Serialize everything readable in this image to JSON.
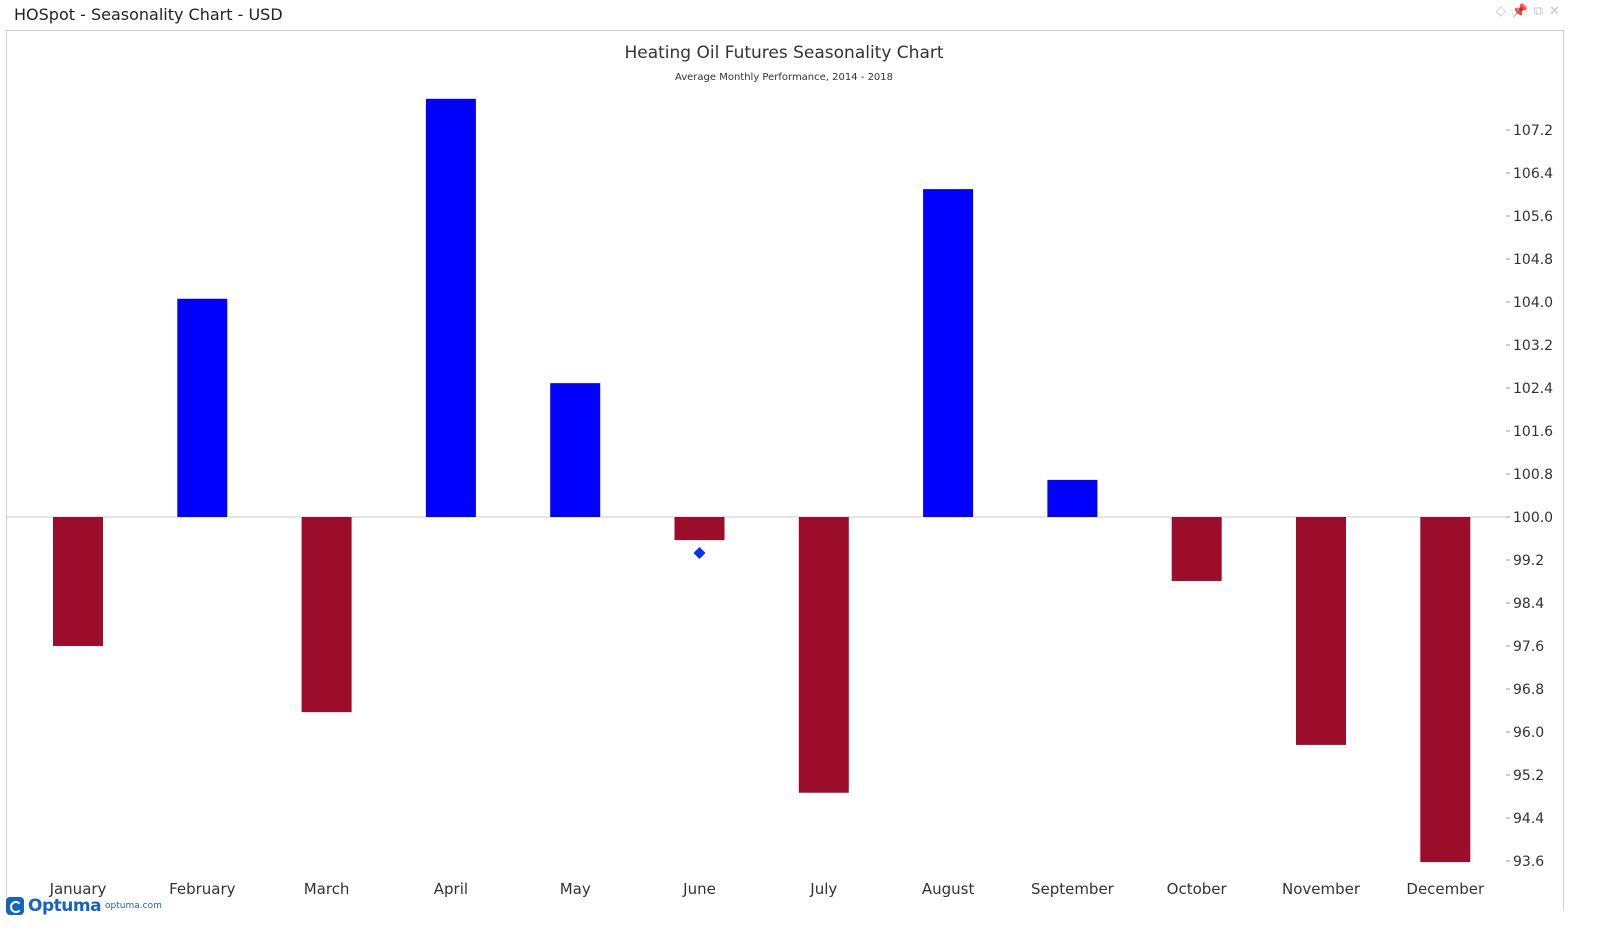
{
  "window": {
    "title": "HOSpot - Seasonality Chart - USD",
    "icons": [
      "diamond-icon",
      "pin-icon",
      "restore-icon",
      "close-icon"
    ]
  },
  "logo": {
    "name": "Optuma",
    "url": "optuma.com"
  },
  "chart_data": {
    "type": "bar",
    "title": "Heating Oil Futures Seasonality Chart",
    "subtitle": "Average Monthly Performance, 2014 - 2018",
    "baseline": 100.0,
    "categories": [
      "January",
      "February",
      "March",
      "April",
      "May",
      "June",
      "July",
      "August",
      "September",
      "October",
      "November",
      "December"
    ],
    "values": [
      97.6,
      104.06,
      96.37,
      107.78,
      102.49,
      99.57,
      94.87,
      106.1,
      100.69,
      98.81,
      95.76,
      93.58
    ],
    "markers": [
      {
        "category": "June",
        "value": 99.33,
        "shape": "diamond",
        "color": "#0033ee"
      }
    ],
    "yticks": [
      "107.2",
      "106.4",
      "105.6",
      "104.8",
      "104.0",
      "103.2",
      "102.4",
      "101.6",
      "100.8",
      "100.0",
      "99.2",
      "98.4",
      "97.6",
      "96.8",
      "96.0",
      "95.2",
      "94.4",
      "93.6"
    ],
    "ylim": [
      93.6,
      107.78
    ],
    "yaxis_position": "right",
    "grid": false,
    "colors": {
      "positive": "#0000ff",
      "negative": "#9b0d2b",
      "baseline": "#cccccc"
    }
  }
}
